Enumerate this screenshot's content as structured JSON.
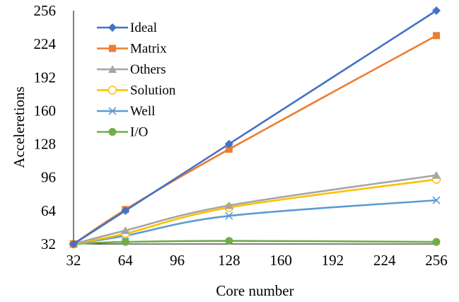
{
  "chart_data": {
    "type": "line",
    "title": "",
    "xlabel": "Core number",
    "ylabel": "Acceleretions",
    "xlim": [
      32,
      256
    ],
    "ylim": [
      32,
      256
    ],
    "x_ticks": [
      32,
      64,
      96,
      128,
      160,
      192,
      224,
      256
    ],
    "y_ticks": [
      32,
      64,
      96,
      128,
      160,
      192,
      224,
      256
    ],
    "grid": false,
    "legend_position": "top-left",
    "x": [
      32,
      64,
      128,
      256
    ],
    "series": [
      {
        "name": "Ideal",
        "values": [
          32,
          64,
          128,
          256
        ],
        "color": "#4472C4",
        "marker": "diamond"
      },
      {
        "name": "Matrix",
        "values": [
          32,
          65,
          123,
          232
        ],
        "color": "#ED7D31",
        "marker": "square"
      },
      {
        "name": "Others",
        "values": [
          32,
          45,
          69,
          98
        ],
        "color": "#A5A5A5",
        "marker": "triangle"
      },
      {
        "name": "Solution",
        "values": [
          32,
          42,
          67,
          94
        ],
        "color": "#FFC000",
        "marker": "circle-open"
      },
      {
        "name": "Well",
        "values": [
          32,
          40,
          59,
          74
        ],
        "color": "#5B9BD5",
        "marker": "x"
      },
      {
        "name": "I/O",
        "values": [
          32,
          34,
          35,
          34
        ],
        "color": "#70AD47",
        "marker": "circle"
      }
    ]
  }
}
